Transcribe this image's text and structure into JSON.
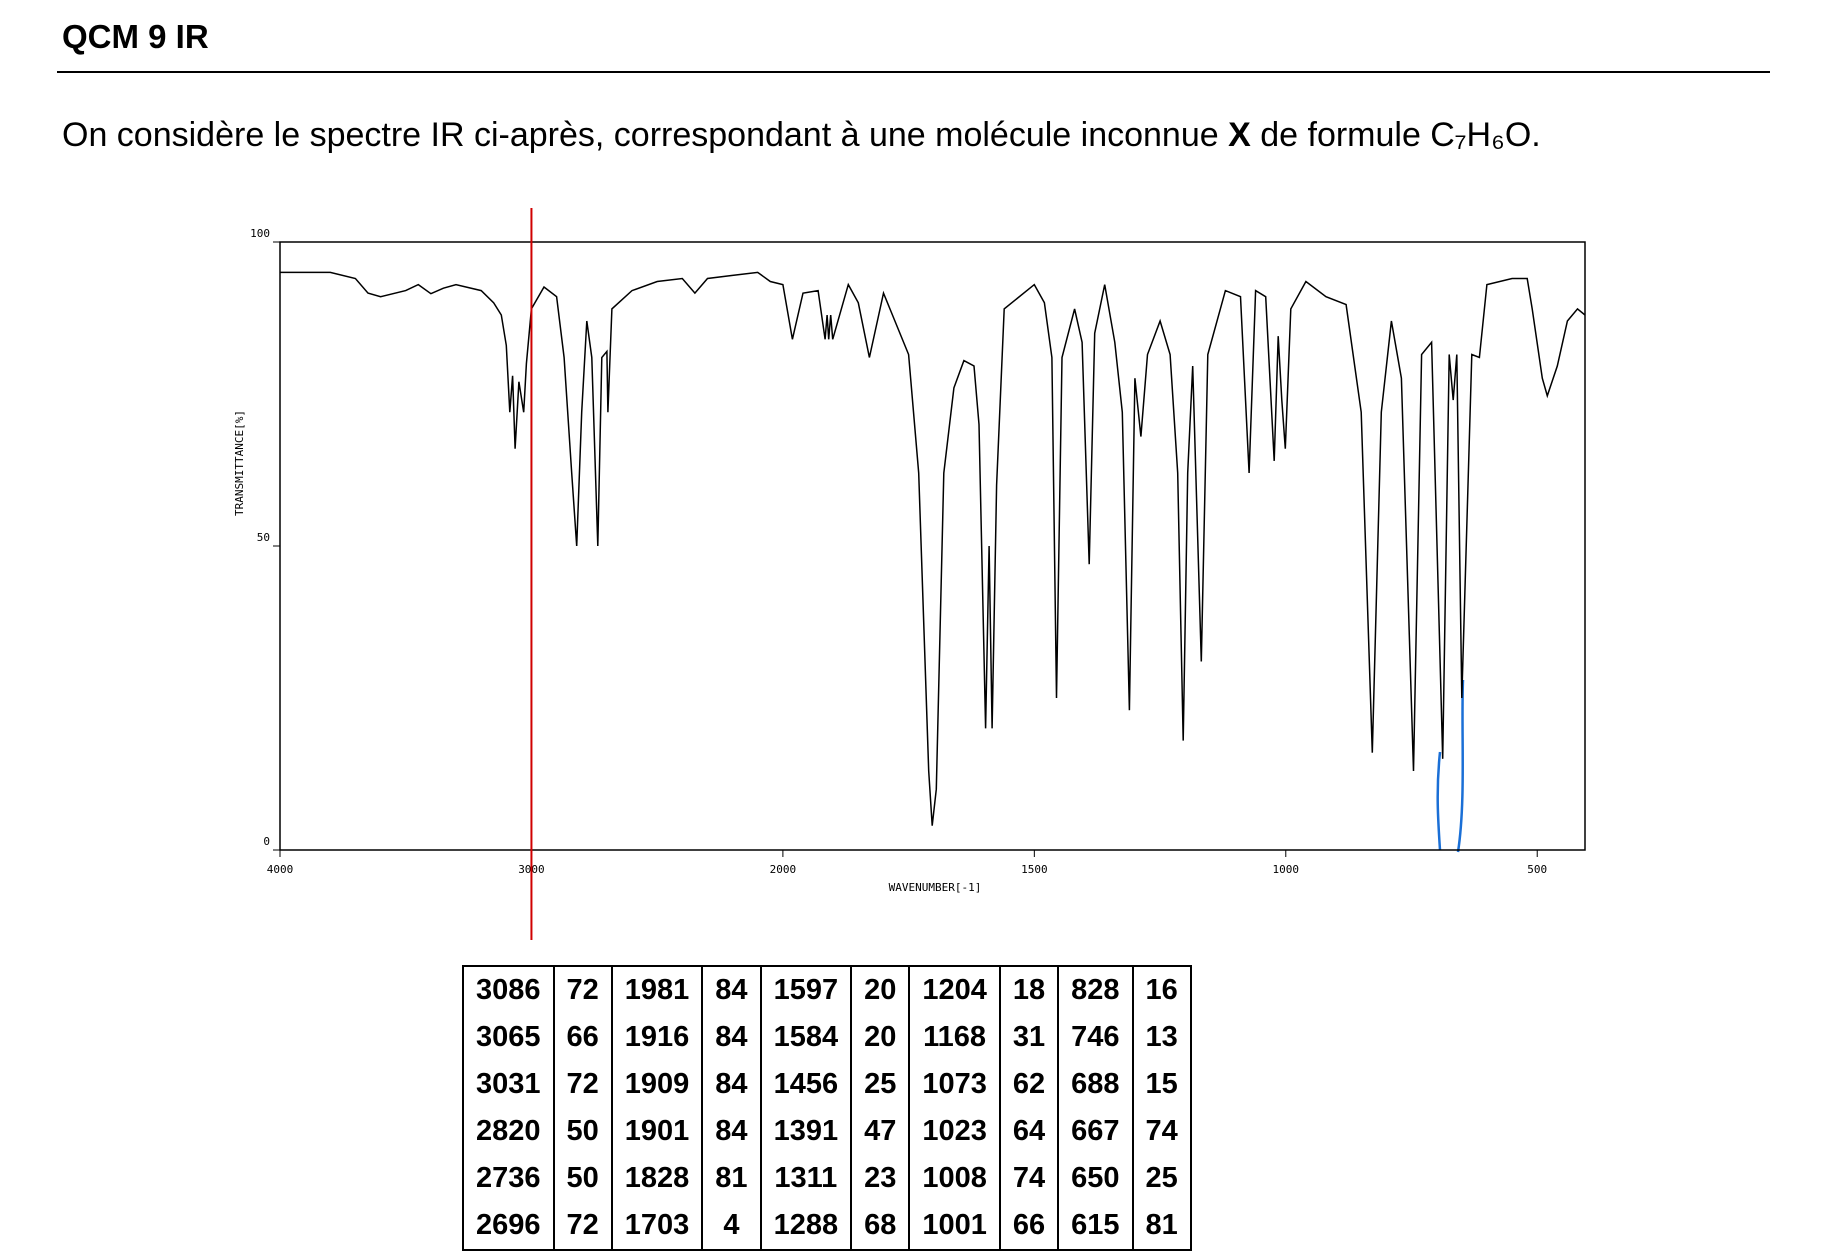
{
  "header": {
    "title": "QCM 9 IR"
  },
  "intro": [
    "On considère le spectre IR ci-après, correspondant à une molécule inconnue ",
    "X",
    " de formule C₇H₆O."
  ],
  "chart_data": {
    "type": "line",
    "xlabel": "WAVENUMBER[-1]",
    "ylabel": "TRANSMITTANCE[%]",
    "xlim": [
      4000,
      405
    ],
    "ylim": [
      0,
      100
    ],
    "xticks": [
      4000,
      3000,
      2000,
      1500,
      1000,
      500
    ],
    "yticks": [
      0,
      50,
      100
    ],
    "x_scale_change": 2000,
    "x_scale_ratio": 2,
    "vline": 3000,
    "vline_color": "#d00000",
    "series": [
      {
        "color": "#000000",
        "x": [
          4000,
          3900,
          3800,
          3700,
          3650,
          3600,
          3500,
          3450,
          3400,
          3350,
          3300,
          3200,
          3150,
          3120,
          3100,
          3086,
          3075,
          3065,
          3050,
          3031,
          3020,
          3000,
          2950,
          2900,
          2870,
          2840,
          2820,
          2800,
          2780,
          2760,
          2736,
          2720,
          2700,
          2696,
          2680,
          2600,
          2500,
          2400,
          2350,
          2300,
          2200,
          2100,
          2050,
          2000,
          1981,
          1960,
          1930,
          1916,
          1912,
          1909,
          1905,
          1901,
          1870,
          1850,
          1828,
          1800,
          1750,
          1730,
          1710,
          1703,
          1695,
          1680,
          1660,
          1640,
          1620,
          1610,
          1597,
          1590,
          1584,
          1575,
          1560,
          1500,
          1480,
          1465,
          1456,
          1445,
          1420,
          1405,
          1391,
          1380,
          1360,
          1340,
          1325,
          1311,
          1300,
          1288,
          1275,
          1250,
          1230,
          1215,
          1204,
          1195,
          1185,
          1168,
          1155,
          1120,
          1090,
          1073,
          1060,
          1040,
          1023,
          1015,
          1008,
          1001,
          990,
          960,
          920,
          880,
          850,
          828,
          810,
          790,
          770,
          746,
          730,
          710,
          688,
          675,
          667,
          660,
          650,
          630,
          615,
          600,
          550,
          520,
          510,
          490,
          480,
          460,
          440,
          420,
          405
        ],
        "values": [
          95,
          95,
          95,
          94,
          91.6,
          91,
          92,
          93,
          91.5,
          92.4,
          93,
          92,
          90,
          88,
          83,
          72,
          78,
          66,
          77,
          72,
          80,
          89,
          92.6,
          91,
          81,
          62,
          50,
          72,
          87,
          81,
          50,
          81,
          82,
          72,
          89,
          92,
          93.5,
          94,
          91.6,
          94,
          94.5,
          95,
          93.5,
          93,
          84,
          91.6,
          92,
          84,
          88,
          84,
          88,
          84,
          93,
          90,
          81,
          91.6,
          81.5,
          62,
          13,
          4,
          10,
          62,
          76,
          80.5,
          79.6,
          70,
          20,
          50,
          20,
          60,
          89,
          93,
          90,
          81,
          25,
          81,
          89,
          83.5,
          47,
          85,
          93,
          83.5,
          72,
          23,
          77.6,
          68,
          81.5,
          87,
          81.5,
          62,
          18,
          62,
          79.6,
          31,
          81.5,
          92,
          91,
          62,
          92,
          91,
          64,
          84.5,
          74,
          66,
          89,
          93.5,
          91,
          89.7,
          72,
          16,
          72,
          87,
          77.6,
          13,
          81.5,
          83.5,
          15,
          81.5,
          74,
          81.5,
          25,
          81.5,
          81,
          93,
          94,
          94,
          89,
          77.6,
          74.7,
          79.6,
          87,
          89,
          88
        ]
      }
    ]
  },
  "table": {
    "rows": [
      [
        "3086",
        "72",
        "1981",
        "84",
        "1597",
        "20",
        "1204",
        "18",
        "828",
        "16"
      ],
      [
        "3065",
        "66",
        "1916",
        "84",
        "1584",
        "20",
        "1168",
        "31",
        "746",
        "13"
      ],
      [
        "3031",
        "72",
        "1909",
        "84",
        "1456",
        "25",
        "1073",
        "62",
        "688",
        "15"
      ],
      [
        "2820",
        "50",
        "1901",
        "84",
        "1391",
        "47",
        "1023",
        "64",
        "667",
        "74"
      ],
      [
        "2736",
        "50",
        "1828",
        "81",
        "1311",
        "23",
        "1008",
        "74",
        "650",
        "25"
      ],
      [
        "2696",
        "72",
        "1703",
        "4",
        "1288",
        "68",
        "1001",
        "66",
        "615",
        "81"
      ]
    ]
  }
}
